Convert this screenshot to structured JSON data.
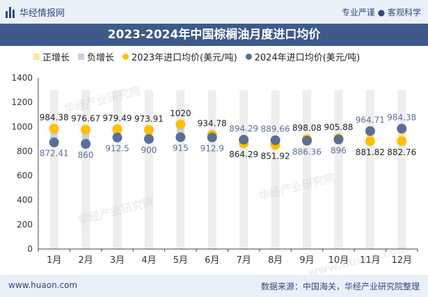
{
  "header": {
    "brand": "华经情报网",
    "tagline": "专业严谨 ● 客观科学"
  },
  "title": "2023-2024年中国棕榈油月度进口均价",
  "legend": {
    "up": "正增长",
    "down": "负增长",
    "s2023": "2023年进口均价(美元/吨)",
    "s2024": "2024年进口均价(美元/吨)"
  },
  "footer": {
    "site": "www.huaon.com",
    "source": "数据来源：中国海关，华经产业研究院整理"
  },
  "watermarks": [
    "华经产业研究院",
    "华经产业研究院",
    "华经产业研究院",
    "www.huaon.com"
  ],
  "colors": {
    "s2023": "#ffc000",
    "s2024": "#5b6f95",
    "up": "#ffe599",
    "down": "#c9d0e0",
    "band": "#eeeeee"
  },
  "chart_data": {
    "type": "scatter",
    "title": "2023-2024年中国棕榈油月度进口均价",
    "categories": [
      "1月",
      "2月",
      "3月",
      "4月",
      "5月",
      "6月",
      "7月",
      "8月",
      "9月",
      "10月",
      "11月",
      "12月"
    ],
    "series": [
      {
        "name": "2023年进口均价(美元/吨)",
        "values": [
          984.38,
          976.67,
          979.49,
          973.91,
          1020,
          934.78,
          864.29,
          851.92,
          898.08,
          905.88,
          881.82,
          882.76
        ]
      },
      {
        "name": "2024年进口均价(美元/吨)",
        "values": [
          872.41,
          860,
          912.5,
          900,
          915,
          912.9,
          894.29,
          889.66,
          886.36,
          896,
          964.71,
          984.38
        ]
      }
    ],
    "labels_2023": [
      "984.38",
      "976.67",
      "979.49",
      "973.91",
      "1020",
      "934.78",
      "864.29",
      "851.92",
      "898.08",
      "905.88",
      "881.82",
      "882.76"
    ],
    "labels_2024": [
      "872.41",
      "860",
      "912.5",
      "900",
      "915",
      "912.9",
      "894.29",
      "889.66",
      "886.36",
      "896",
      "964.71",
      "984.38"
    ],
    "yticks": [
      "0",
      "200",
      "400",
      "600",
      "800",
      "1000",
      "1200",
      "1400"
    ],
    "ylim": [
      0,
      1400
    ],
    "ystep": 200,
    "xlabel": "",
    "ylabel": ""
  }
}
